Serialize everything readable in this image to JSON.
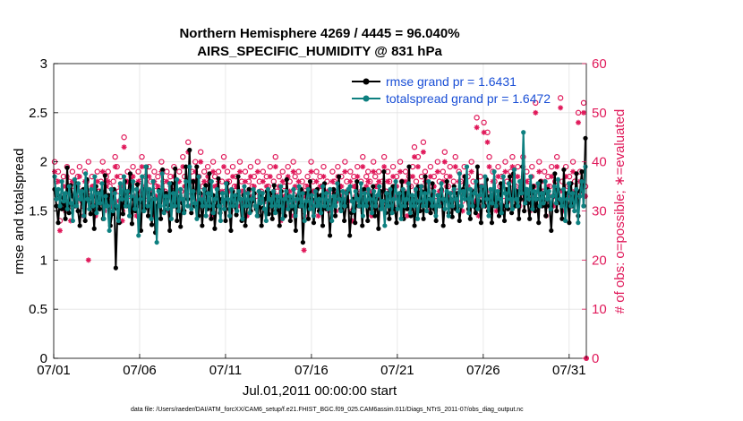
{
  "chart_data": {
    "type": "line",
    "title": "Northern Hemisphere 4269 / 4445 = 96.040%",
    "subtitle": "AIRS_SPECIFIC_HUMIDITY @ 831 hPa",
    "xlabel": "Jul.01,2011 00:00:00 start",
    "ylabel": "rmse and totalspread",
    "ylabel_right": "# of obs: o=possible; ∗=evaluated",
    "footer": "data file: /Users/raeder/DAI/ATM_forcXX/CAM6_setup/f.e21.FHIST_BGC.f09_025.CAM6assim.011/Diags_NTrS_2011-07/obs_diag_output.nc",
    "x_tick_labels": [
      "07/01",
      "07/06",
      "07/11",
      "07/16",
      "07/21",
      "07/26",
      "07/31"
    ],
    "x_ticks": [
      0,
      5,
      10,
      15,
      20,
      25,
      30
    ],
    "xlim": [
      0,
      31
    ],
    "ylim": [
      0,
      3
    ],
    "y_ticks": [
      0,
      0.5,
      1,
      1.5,
      2,
      2.5,
      3
    ],
    "y_tick_labels": [
      "0",
      "0.5",
      "1",
      "1.5",
      "2",
      "2.5",
      "3"
    ],
    "ylim_right": [
      0,
      60
    ],
    "y_ticks_right": [
      0,
      10,
      20,
      30,
      40,
      50,
      60
    ],
    "y_tick_labels_right": [
      "0",
      "10",
      "20",
      "30",
      "40",
      "50",
      "60"
    ],
    "grid": true,
    "legend_position": "top-right",
    "colors": {
      "rmse": "#000000",
      "spread": "#0e8080",
      "obs": "#e0195a",
      "legend_text": "#1a4fd6"
    },
    "series": [
      {
        "name": "rmse grand pr = 1.6431",
        "color": "#000000",
        "values": [
          1.72,
          1.55,
          1.38,
          1.65,
          1.52,
          1.63,
          1.42,
          1.94,
          1.48,
          1.76,
          1.65,
          1.55,
          1.78,
          1.5,
          1.35,
          1.62,
          1.72,
          1.4,
          1.82,
          1.6,
          1.47,
          1.64,
          1.32,
          1.75,
          1.63,
          1.52,
          1.7,
          1.42,
          1.86,
          1.55,
          1.66,
          1.35,
          1.47,
          1.72,
          0.92,
          1.52,
          1.38,
          1.63,
          1.47,
          1.8,
          1.55,
          1.7,
          1.88,
          1.37,
          1.62,
          1.5,
          1.77,
          1.58,
          1.3,
          1.72,
          1.52,
          1.95,
          1.45,
          1.67,
          1.36,
          1.62,
          1.28,
          1.55,
          1.71,
          1.42,
          1.92,
          1.5,
          1.68,
          1.56,
          1.3,
          1.78,
          1.55,
          1.93,
          1.4,
          1.64,
          1.34,
          1.58,
          1.5,
          1.95,
          1.62,
          2.12,
          1.48,
          1.8,
          1.55,
          1.95,
          1.45,
          1.68,
          1.35,
          1.6,
          1.76,
          1.52,
          1.88,
          1.42,
          1.66,
          1.32,
          1.55,
          1.83,
          1.48,
          1.62,
          1.6,
          1.4,
          1.78,
          1.52,
          1.3,
          1.7,
          1.55,
          1.46,
          1.85,
          1.62,
          1.4,
          1.66,
          1.35,
          1.55,
          1.72,
          1.5,
          1.6,
          1.68,
          1.52,
          1.45,
          1.65,
          1.35,
          1.53,
          1.62,
          1.7,
          1.47,
          1.68,
          1.42,
          1.76,
          1.5,
          1.62,
          1.35,
          1.7,
          1.55,
          1.45,
          1.82,
          1.6,
          1.4,
          1.63,
          1.52,
          1.3,
          1.65,
          1.55,
          1.72,
          1.18,
          1.55,
          1.68,
          1.42,
          1.8,
          1.62,
          1.38,
          1.55,
          1.72,
          1.5,
          1.66,
          1.35,
          1.78,
          1.52,
          1.6,
          1.25,
          1.55,
          1.72,
          1.45,
          1.68,
          1.85,
          1.52,
          1.62,
          1.4,
          1.55,
          1.7,
          1.25,
          1.48,
          1.62,
          1.38,
          1.8,
          1.55,
          1.65,
          1.35,
          1.72,
          1.58,
          1.4,
          1.66,
          1.52,
          1.75,
          1.45,
          1.62,
          1.32,
          1.7,
          1.55,
          1.9,
          1.48,
          1.68,
          1.42,
          1.58,
          1.75,
          1.52,
          1.38,
          1.65,
          1.55,
          1.8,
          1.42,
          1.68,
          1.52,
          1.95,
          1.45,
          1.62,
          1.35,
          1.58,
          1.75,
          1.5,
          1.7,
          1.42,
          1.85,
          1.55,
          1.62,
          1.48,
          1.78,
          1.52,
          1.4,
          1.66,
          1.55,
          1.72,
          1.35,
          1.6,
          1.8,
          1.48,
          1.62,
          1.44,
          1.75,
          1.52,
          1.68,
          1.4,
          1.55,
          1.72,
          1.85,
          1.62,
          1.52,
          1.42,
          1.7,
          1.55,
          1.48,
          1.95,
          1.6,
          1.38,
          1.72,
          1.55,
          1.82,
          1.5,
          1.65,
          1.38,
          1.72,
          1.55,
          1.6,
          1.45,
          1.78,
          1.55,
          1.4,
          1.72,
          1.52,
          1.85,
          1.48,
          1.88,
          1.55,
          1.7,
          1.42,
          1.62,
          1.95,
          1.5,
          1.72,
          1.58,
          1.42,
          1.68,
          1.75,
          1.5,
          1.62,
          1.38,
          1.8,
          1.55,
          1.68,
          1.45,
          1.72,
          1.55,
          1.3,
          1.65,
          1.88,
          1.5,
          1.72,
          1.58,
          1.42,
          1.92,
          1.55,
          1.68,
          1.38,
          1.78,
          1.55,
          1.62,
          1.88,
          1.45,
          1.7,
          1.9,
          1.55,
          2.24
        ]
      },
      {
        "name": "totalspread grand pr = 1.6472",
        "color": "#0e8080",
        "values": [
          1.85,
          1.62,
          1.72,
          1.55,
          1.8,
          1.6,
          1.68,
          1.52,
          1.75,
          1.58,
          1.4,
          1.82,
          1.55,
          1.78,
          1.62,
          1.7,
          1.45,
          1.88,
          1.62,
          1.52,
          1.72,
          1.55,
          1.85,
          1.48,
          1.68,
          1.58,
          1.78,
          1.42,
          1.65,
          1.55,
          1.3,
          1.72,
          1.5,
          1.68,
          1.55,
          1.4,
          1.78,
          1.62,
          1.85,
          1.55,
          1.7,
          1.45,
          1.65,
          1.8,
          1.52,
          1.72,
          1.25,
          1.62,
          1.85,
          1.5,
          1.95,
          1.55,
          1.72,
          1.42,
          1.8,
          1.62,
          1.18,
          1.7,
          1.55,
          1.88,
          1.48,
          1.65,
          1.52,
          1.78,
          1.42,
          1.68,
          1.55,
          1.82,
          1.5,
          1.72,
          1.62,
          1.48,
          1.8,
          1.55,
          1.95,
          1.52,
          1.7,
          1.58,
          1.42,
          1.85,
          1.62,
          1.55,
          1.72,
          1.45,
          1.68,
          1.55,
          1.8,
          1.48,
          1.62,
          1.72,
          1.55,
          1.4,
          1.68,
          1.52,
          1.78,
          1.62,
          1.45,
          1.72,
          1.55,
          1.66,
          1.5,
          1.7,
          1.62,
          1.42,
          1.75,
          1.55,
          1.68,
          1.48,
          1.62,
          1.72,
          1.55,
          1.45,
          1.7,
          1.58,
          1.68,
          1.52,
          1.4,
          1.72,
          1.62,
          1.55,
          1.7,
          1.48,
          1.65,
          1.55,
          1.75,
          1.42,
          1.62,
          1.7,
          1.52,
          1.65,
          1.55,
          1.72,
          1.45,
          1.62,
          1.75,
          1.55,
          1.68,
          1.4,
          1.6,
          1.72,
          1.52,
          1.66,
          1.45,
          1.7,
          1.55,
          1.62,
          1.48,
          1.75,
          1.55,
          1.68,
          1.52,
          1.72,
          1.4,
          1.65,
          1.55,
          1.78,
          1.62,
          1.5,
          1.7,
          1.55,
          1.68,
          1.72,
          1.75,
          1.6,
          1.5,
          1.7,
          1.62,
          1.55,
          1.78,
          1.45,
          1.68,
          1.55,
          1.72,
          1.62,
          1.48,
          1.7,
          1.55,
          1.66,
          1.75,
          1.52,
          1.6,
          1.35,
          1.68,
          1.55,
          1.72,
          1.48,
          1.62,
          1.8,
          1.52,
          1.68,
          1.42,
          1.72,
          1.55,
          1.62,
          1.78,
          1.48,
          1.66,
          1.55,
          1.72,
          1.42,
          1.6,
          1.75,
          1.55,
          1.68,
          1.5,
          1.8,
          1.62,
          1.55,
          1.7,
          1.45,
          1.66,
          1.55,
          1.78,
          1.62,
          1.52,
          1.7,
          1.45,
          1.68,
          1.55,
          1.72,
          1.62,
          1.5,
          1.88,
          1.55,
          1.7,
          1.62,
          1.95,
          1.48,
          1.72,
          1.55,
          1.68,
          1.8,
          1.52,
          1.66,
          1.75,
          1.55,
          1.85,
          1.62,
          1.45,
          1.72,
          1.58,
          1.9,
          1.55,
          1.7,
          1.62,
          1.48,
          1.85,
          1.68,
          1.55,
          1.78,
          1.62,
          1.52,
          1.92,
          1.62,
          1.55,
          1.8,
          1.68,
          2.3,
          1.58,
          1.72,
          1.62,
          1.85,
          1.52,
          1.7,
          1.62,
          1.78,
          1.55,
          1.68,
          1.58,
          1.8,
          1.62,
          1.7,
          1.52,
          1.65,
          1.75,
          1.58,
          1.82,
          1.62,
          1.55,
          1.72,
          1.4,
          1.62,
          1.78,
          1.55,
          1.68,
          1.5,
          1.72,
          1.38,
          1.65,
          1.8,
          1.55,
          1.95
        ]
      }
    ],
    "obs_possible": [
      40,
      36,
      38,
      28,
      33,
      37,
      32,
      39,
      36,
      30,
      38,
      35,
      33,
      37,
      39,
      34,
      31,
      38,
      36,
      40,
      33,
      37,
      35,
      31,
      38,
      34,
      36,
      40,
      32,
      37,
      38,
      35,
      33,
      36,
      41,
      39,
      34,
      37,
      30,
      45,
      36,
      38,
      33,
      37,
      39,
      35,
      31,
      38,
      36,
      41,
      34,
      37,
      33,
      39,
      36,
      31,
      38,
      35,
      37,
      33,
      40,
      36,
      34,
      38,
      32,
      37,
      35,
      39,
      33,
      36,
      38,
      34,
      41,
      37,
      35,
      44,
      33,
      38,
      36,
      40,
      34,
      37,
      42,
      35,
      38,
      33,
      39,
      36,
      31,
      40,
      37,
      35,
      38,
      33,
      36,
      41,
      34,
      38,
      36,
      32,
      39,
      35,
      37,
      33,
      40,
      36,
      34,
      38,
      31,
      36,
      39,
      35,
      37,
      33,
      40,
      36,
      34,
      38,
      32,
      37,
      35,
      39,
      33,
      36,
      41,
      34,
      37,
      30,
      38,
      35,
      33,
      39,
      36,
      31,
      40,
      37,
      34,
      38,
      33,
      36,
      29,
      35,
      37,
      33,
      40,
      36,
      34,
      38,
      31,
      37,
      35,
      39,
      33,
      36,
      32,
      34,
      38,
      36,
      32,
      39,
      35,
      37,
      33,
      40,
      36,
      34,
      38,
      30,
      37,
      35,
      39,
      33,
      36,
      41,
      34,
      37,
      38,
      36,
      31,
      40,
      37,
      35,
      38,
      33,
      36,
      41,
      34,
      38,
      36,
      32,
      39,
      35,
      37,
      33,
      40,
      36,
      34,
      38,
      31,
      37,
      35,
      39,
      43,
      36,
      41,
      34,
      37,
      44,
      38,
      36,
      32,
      39,
      35,
      37,
      33,
      40,
      36,
      34,
      38,
      42,
      37,
      35,
      39,
      33,
      36,
      41,
      34,
      38,
      36,
      32,
      39,
      35,
      37,
      33,
      40,
      36,
      34,
      49,
      31,
      37,
      35,
      48,
      33,
      46,
      41,
      34,
      38,
      36,
      32,
      39,
      35,
      37,
      33,
      40,
      36,
      34,
      38,
      41,
      37,
      35,
      39,
      33,
      36,
      41,
      34,
      38,
      36,
      32,
      39,
      35,
      52,
      33,
      40,
      36,
      34,
      38,
      31,
      37,
      35,
      39,
      33,
      36,
      41,
      34,
      53,
      36,
      32,
      39,
      35,
      37,
      33,
      40,
      36,
      34,
      50,
      38,
      36,
      52,
      35
    ],
    "obs_evaluated": [
      38,
      34,
      36,
      26,
      31,
      35,
      30,
      37,
      34,
      28,
      36,
      33,
      31,
      35,
      37,
      32,
      29,
      36,
      34,
      20,
      31,
      35,
      33,
      29,
      36,
      32,
      34,
      38,
      30,
      35,
      36,
      33,
      31,
      34,
      39,
      37,
      32,
      35,
      28,
      43,
      34,
      36,
      31,
      35,
      37,
      33,
      29,
      36,
      34,
      39,
      32,
      35,
      31,
      37,
      34,
      29,
      36,
      33,
      35,
      31,
      38,
      34,
      32,
      36,
      30,
      35,
      33,
      37,
      31,
      34,
      36,
      32,
      39,
      35,
      33,
      42,
      31,
      36,
      34,
      38,
      32,
      35,
      40,
      33,
      36,
      31,
      37,
      34,
      29,
      38,
      35,
      33,
      36,
      31,
      34,
      39,
      32,
      36,
      34,
      30,
      37,
      33,
      35,
      31,
      38,
      34,
      32,
      36,
      29,
      34,
      37,
      33,
      35,
      31,
      38,
      34,
      32,
      36,
      30,
      35,
      33,
      37,
      31,
      34,
      39,
      32,
      35,
      28,
      36,
      33,
      31,
      37,
      34,
      29,
      38,
      35,
      32,
      36,
      31,
      34,
      22,
      33,
      35,
      31,
      38,
      34,
      32,
      36,
      29,
      35,
      33,
      37,
      31,
      34,
      30,
      32,
      36,
      34,
      30,
      37,
      33,
      35,
      31,
      38,
      34,
      32,
      36,
      28,
      35,
      33,
      37,
      31,
      34,
      39,
      32,
      35,
      36,
      34,
      29,
      38,
      35,
      33,
      36,
      31,
      34,
      39,
      32,
      36,
      34,
      30,
      37,
      33,
      35,
      31,
      38,
      34,
      32,
      36,
      29,
      35,
      33,
      37,
      41,
      34,
      39,
      32,
      35,
      42,
      36,
      34,
      30,
      37,
      33,
      35,
      31,
      38,
      34,
      32,
      36,
      40,
      35,
      33,
      37,
      31,
      34,
      39,
      32,
      36,
      34,
      30,
      37,
      33,
      35,
      31,
      38,
      34,
      32,
      47,
      29,
      35,
      33,
      46,
      31,
      44,
      39,
      32,
      36,
      34,
      30,
      37,
      33,
      35,
      31,
      38,
      34,
      32,
      36,
      39,
      35,
      33,
      37,
      31,
      34,
      39,
      32,
      36,
      34,
      30,
      37,
      33,
      50,
      31,
      38,
      34,
      32,
      36,
      29,
      35,
      33,
      37,
      31,
      34,
      39,
      32,
      51,
      34,
      30,
      37,
      33,
      35,
      31,
      38,
      34,
      32,
      48,
      36,
      34,
      50,
      33
    ]
  }
}
